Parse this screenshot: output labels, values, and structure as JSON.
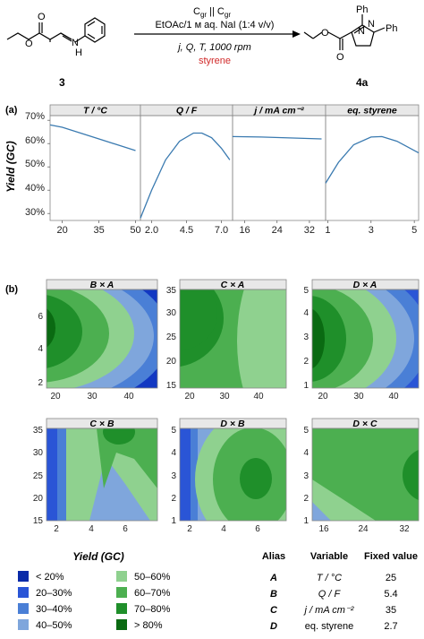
{
  "scheme": {
    "reactant_label": "3",
    "product_label": "4a",
    "electrode": "C",
    "electrode_sub": "gr",
    "electrode_sep": "||",
    "electrolyte": "EtOAc/1 м aq. NaI (1:4 v/v)",
    "conditions": "j, Q, T, 1000 rpm",
    "reagent": "styrene",
    "reactant_hetero_n1": "N",
    "reactant_hetero_h": "H",
    "reactant_o1": "O",
    "reactant_o2": "O",
    "product_o1": "O",
    "product_o2": "O",
    "product_n1": "N",
    "product_n2": "N",
    "product_ph1": "Ph",
    "product_ph2": "Ph"
  },
  "panel_a": {
    "label": "(a)",
    "ylabel": "Yield (GC)",
    "yticks": [
      "70%",
      "60%",
      "50%",
      "40%",
      "30%"
    ],
    "ytick_values": [
      0.7,
      0.6,
      0.5,
      0.4,
      0.3
    ],
    "ylim": [
      0.27,
      0.72
    ]
  },
  "panel_b": {
    "label": "(b)",
    "legend_title": "Yield (GC)",
    "legend": [
      {
        "label": "< 20%",
        "color": "#0a2aa8"
      },
      {
        "label": "20–30%",
        "color": "#2a55d6"
      },
      {
        "label": "30–40%",
        "color": "#4a7fd6"
      },
      {
        "label": "40–50%",
        "color": "#7fa6dc"
      },
      {
        "label": "50–60%",
        "color": "#8fd18f"
      },
      {
        "label": "60–70%",
        "color": "#4caf50"
      },
      {
        "label": "70–80%",
        "color": "#1f8f2a"
      },
      {
        "label": "> 80%",
        "color": "#0a6a12"
      }
    ],
    "table": {
      "headers": [
        "Alias",
        "Variable",
        "Fixed value"
      ],
      "rows": [
        [
          "A",
          "T / °C",
          "25"
        ],
        [
          "B",
          "Q / F",
          "5.4"
        ],
        [
          "C",
          "j / mA cm⁻²",
          "35"
        ],
        [
          "D",
          "eq. styrene",
          "2.7"
        ]
      ]
    }
  },
  "chart_data": [
    {
      "type": "line",
      "title": "T / °C",
      "x": [
        15,
        20,
        35,
        50
      ],
      "y": [
        0.68,
        0.67,
        0.62,
        0.57
      ],
      "xticks": [
        "20",
        "35",
        "50"
      ],
      "xlim": [
        15,
        52
      ]
    },
    {
      "type": "line",
      "title": "Q / F",
      "x": [
        1.2,
        2.0,
        3.0,
        4.0,
        5.0,
        5.6,
        6.3,
        7.0,
        7.6
      ],
      "y": [
        0.28,
        0.4,
        0.53,
        0.61,
        0.645,
        0.645,
        0.625,
        0.58,
        0.53
      ],
      "xticks": [
        "2.0",
        "4.5",
        "7.0"
      ],
      "xlim": [
        1.2,
        7.8
      ]
    },
    {
      "type": "line",
      "title": "j / mA cm⁻²",
      "x": [
        13,
        20,
        28,
        35
      ],
      "y": [
        0.63,
        0.628,
        0.624,
        0.62
      ],
      "xticks": [
        "16",
        "24",
        "32"
      ],
      "xlim": [
        13,
        36
      ]
    },
    {
      "type": "line",
      "title": "eq. styrene",
      "x": [
        0.9,
        1.5,
        2.2,
        3.0,
        3.5,
        4.2,
        5.2
      ],
      "y": [
        0.43,
        0.52,
        0.595,
        0.628,
        0.63,
        0.61,
        0.56
      ],
      "xticks": [
        "1",
        "3",
        "5"
      ],
      "xlim": [
        0.9,
        5.2
      ]
    },
    {
      "type": "contour",
      "title": "B × A",
      "xticks": [
        "20",
        "30",
        "40"
      ],
      "yticks": [
        "2",
        "4",
        "6"
      ]
    },
    {
      "type": "contour",
      "title": "C × A",
      "xticks": [
        "20",
        "30",
        "40"
      ],
      "yticks": [
        "15",
        "20",
        "25",
        "30",
        "35"
      ]
    },
    {
      "type": "contour",
      "title": "D × A",
      "xticks": [
        "20",
        "30",
        "40"
      ],
      "yticks": [
        "1",
        "2",
        "3",
        "4",
        "5"
      ]
    },
    {
      "type": "contour",
      "title": "C × B",
      "xticks": [
        "2",
        "4",
        "6"
      ],
      "yticks": [
        "15",
        "20",
        "25",
        "30",
        "35"
      ]
    },
    {
      "type": "contour",
      "title": "D × B",
      "xticks": [
        "2",
        "4",
        "6"
      ],
      "yticks": [
        "1",
        "2",
        "3",
        "4",
        "5"
      ]
    },
    {
      "type": "contour",
      "title": "D × C",
      "xticks": [
        "16",
        "24",
        "32"
      ],
      "yticks": [
        "1",
        "2",
        "3",
        "4",
        "5"
      ]
    }
  ]
}
